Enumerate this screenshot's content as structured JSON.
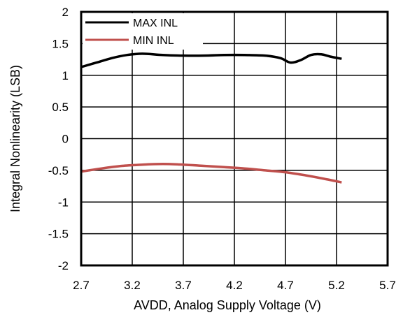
{
  "chart_data": {
    "type": "line",
    "title": "",
    "xlabel": "AVDD, Analog Supply Voltage (V)",
    "ylabel": "Integral Nonlinearity (LSB)",
    "xlim": [
      2.7,
      5.7
    ],
    "ylim": [
      -2,
      2
    ],
    "x_ticks": [
      "2.7",
      "3.2",
      "3.7",
      "4.2",
      "4.7",
      "5.2",
      "5.7"
    ],
    "y_ticks": [
      "2",
      "1.5",
      "1",
      "0.5",
      "0",
      "-0.5",
      "-1",
      "-1.5",
      "-2"
    ],
    "grid": true,
    "legend_position": "top-left",
    "series": [
      {
        "name": "MAX INL",
        "color": "#000000",
        "x": [
          2.7,
          2.85,
          3.0,
          3.15,
          3.3,
          3.5,
          3.7,
          3.9,
          4.1,
          4.3,
          4.5,
          4.65,
          4.75,
          4.85,
          4.95,
          5.05,
          5.15,
          5.25
        ],
        "y": [
          1.13,
          1.2,
          1.27,
          1.32,
          1.34,
          1.32,
          1.31,
          1.31,
          1.32,
          1.32,
          1.31,
          1.27,
          1.2,
          1.24,
          1.32,
          1.33,
          1.29,
          1.26
        ]
      },
      {
        "name": "MIN INL",
        "color": "#c0504d",
        "x": [
          2.7,
          2.9,
          3.1,
          3.3,
          3.5,
          3.7,
          3.9,
          4.1,
          4.3,
          4.5,
          4.7,
          4.9,
          5.1,
          5.25
        ],
        "y": [
          -0.52,
          -0.47,
          -0.43,
          -0.41,
          -0.4,
          -0.41,
          -0.43,
          -0.45,
          -0.47,
          -0.5,
          -0.53,
          -0.58,
          -0.64,
          -0.69
        ]
      }
    ]
  }
}
